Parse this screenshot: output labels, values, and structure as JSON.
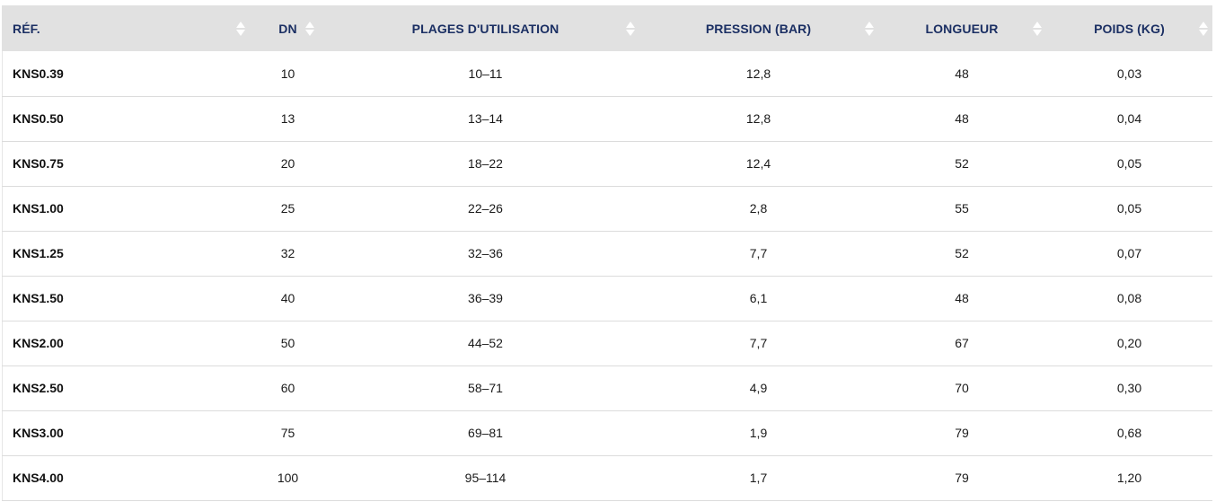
{
  "table": {
    "headers": [
      {
        "key": "ref",
        "label": "RÉF."
      },
      {
        "key": "dn",
        "label": "DN"
      },
      {
        "key": "plages",
        "label": "PLAGES D'UTILISATION"
      },
      {
        "key": "pression",
        "label": "PRESSION (BAR)"
      },
      {
        "key": "longueur",
        "label": "LONGUEUR"
      },
      {
        "key": "poids",
        "label": "POIDS (KG)"
      }
    ],
    "rows": [
      {
        "ref": "KNS0.39",
        "dn": "10",
        "plages": "10–11",
        "pression": "12,8",
        "longueur": "48",
        "poids": "0,03"
      },
      {
        "ref": "KNS0.50",
        "dn": "13",
        "plages": "13–14",
        "pression": "12,8",
        "longueur": "48",
        "poids": "0,04"
      },
      {
        "ref": "KNS0.75",
        "dn": "20",
        "plages": "18–22",
        "pression": "12,4",
        "longueur": "52",
        "poids": "0,05"
      },
      {
        "ref": "KNS1.00",
        "dn": "25",
        "plages": "22–26",
        "pression": "2,8",
        "longueur": "55",
        "poids": "0,05"
      },
      {
        "ref": "KNS1.25",
        "dn": "32",
        "plages": "32–36",
        "pression": "7,7",
        "longueur": "52",
        "poids": "0,07"
      },
      {
        "ref": "KNS1.50",
        "dn": "40",
        "plages": "36–39",
        "pression": "6,1",
        "longueur": "48",
        "poids": "0,08"
      },
      {
        "ref": "KNS2.00",
        "dn": "50",
        "plages": "44–52",
        "pression": "7,7",
        "longueur": "67",
        "poids": "0,20"
      },
      {
        "ref": "KNS2.50",
        "dn": "60",
        "plages": "58–71",
        "pression": "4,9",
        "longueur": "70",
        "poids": "0,30"
      },
      {
        "ref": "KNS3.00",
        "dn": "75",
        "plages": "69–81",
        "pression": "1,9",
        "longueur": "79",
        "poids": "0,68"
      },
      {
        "ref": "KNS4.00",
        "dn": "100",
        "plages": "95–114",
        "pression": "1,7",
        "longueur": "79",
        "poids": "1,20"
      }
    ]
  },
  "colors": {
    "header_bg": "#e1e1e1",
    "header_text": "#1b2f63",
    "row_border": "#dcdcdc"
  },
  "icons": {
    "sort": "sort-arrows-icon"
  }
}
